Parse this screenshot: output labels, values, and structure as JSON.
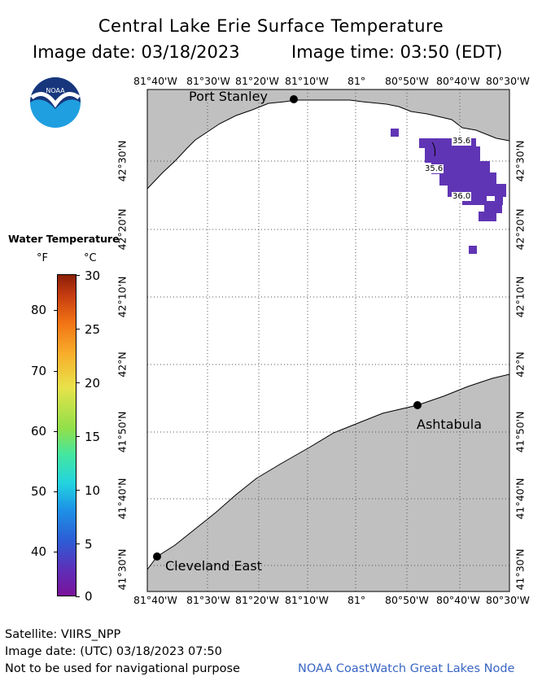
{
  "title": "Central Lake Erie Surface Temperature",
  "image_date_line": "Image date: 03/18/2023",
  "image_time_line": "Image time: 03:50 (EDT)",
  "longitude_labels": [
    "81°40'W",
    "81°30'W",
    "81°20'W",
    "81°10'W",
    "81°",
    "80°50'W",
    "80°40'W",
    "80°30'W"
  ],
  "latitude_labels": [
    "42°30'N",
    "42°20'N",
    "42°10'N",
    "42°N",
    "41°50'N",
    "41°40'N",
    "41°30'N"
  ],
  "places": {
    "port_stanley": "Port Stanley",
    "ashtabula": "Ashtabula",
    "cleveland_east": "Cleveland East"
  },
  "temp_labels": [
    "35.6",
    "35.6",
    "36.0"
  ],
  "legend": {
    "title": "Water Temperature",
    "unit_f": "°F",
    "unit_c": "°C",
    "f_values": [
      "80",
      "70",
      "60",
      "50",
      "40"
    ],
    "c_values": [
      "30",
      "25",
      "20",
      "15",
      "10",
      "5",
      "0"
    ]
  },
  "footer": {
    "satellite": "Satellite: VIIRS_NPP",
    "utc_date": "Image date: (UTC) 03/18/2023  07:50",
    "disclaimer": "Not to be used for navigational purpose",
    "credit": "NOAA CoastWatch Great Lakes Node"
  },
  "logo_text": "NOAA",
  "colors": {
    "land": "#c0c0c0",
    "water": "#ffffff",
    "data_pixels": "#6035b5",
    "credit_text": "#3a66c4"
  }
}
